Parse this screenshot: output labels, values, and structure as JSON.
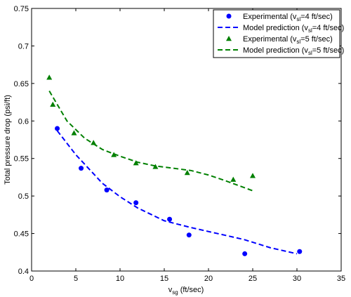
{
  "chart_data": {
    "type": "scatter",
    "xlabel": "v",
    "xlabel_sub": "sg",
    "xlabel_unit": " (ft/sec)",
    "ylabel": "Total pressure drop (psi/ft)",
    "xlim": [
      0,
      35
    ],
    "ylim": [
      0.4,
      0.75
    ],
    "xticks": [
      0,
      5,
      10,
      15,
      20,
      25,
      30,
      35
    ],
    "xtick_labels": [
      "0",
      "5",
      "10",
      "15",
      "20",
      "25",
      "30",
      "35"
    ],
    "yticks": [
      0.4,
      0.45,
      0.5,
      0.55,
      0.6,
      0.65,
      0.7,
      0.75
    ],
    "ytick_labels": [
      "0.4",
      "0.45",
      "0.5",
      "0.55",
      "0.6",
      "0.65",
      "0.7",
      "0.75"
    ],
    "grid": false,
    "legend_position": "top-right",
    "series": [
      {
        "kind": "scatter",
        "marker": "circle",
        "color": "#0000ff",
        "name_pre": "Experimental (v",
        "name_sub": "sl",
        "name_post": "=4 ft/sec)",
        "x": [
          2.9,
          5.6,
          8.5,
          11.8,
          15.6,
          17.8,
          24.1,
          30.3
        ],
        "y": [
          0.59,
          0.537,
          0.508,
          0.491,
          0.469,
          0.448,
          0.423,
          0.426
        ]
      },
      {
        "kind": "line",
        "style": "dashed",
        "color": "#0000ff",
        "name_pre": "Model prediction (v",
        "name_sub": "sl",
        "name_post": "=4 ft/sec)",
        "x": [
          2.9,
          5,
          8,
          10,
          12,
          15,
          18,
          21,
          24,
          27,
          30
        ],
        "y": [
          0.587,
          0.555,
          0.517,
          0.499,
          0.484,
          0.467,
          0.458,
          0.45,
          0.442,
          0.431,
          0.423
        ]
      },
      {
        "kind": "scatter",
        "marker": "triangle",
        "color": "#008000",
        "name_pre": "Experimental (v",
        "name_sub": "sl",
        "name_post": "=5 ft/sec)",
        "x": [
          2.0,
          2.4,
          4.8,
          7.0,
          9.3,
          11.8,
          14.0,
          17.6,
          22.8,
          25.0
        ],
        "y": [
          0.658,
          0.622,
          0.584,
          0.571,
          0.555,
          0.544,
          0.539,
          0.531,
          0.522,
          0.527
        ]
      },
      {
        "kind": "line",
        "style": "dashed",
        "color": "#008000",
        "name_pre": "Model prediction (v",
        "name_sub": "sl",
        "name_post": "=5 ft/sec)",
        "x": [
          2,
          4,
          6,
          8,
          10,
          12,
          14,
          16,
          18,
          20,
          22,
          25
        ],
        "y": [
          0.64,
          0.6,
          0.577,
          0.562,
          0.553,
          0.545,
          0.54,
          0.537,
          0.534,
          0.528,
          0.52,
          0.507
        ]
      }
    ]
  }
}
